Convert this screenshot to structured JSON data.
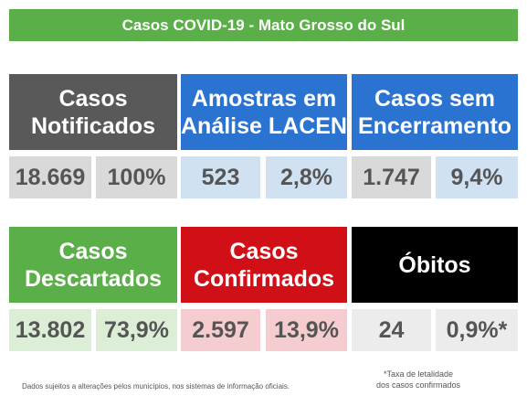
{
  "title": "Casos COVID-19 - Mato Grosso do Sul",
  "row1": {
    "notificados": {
      "line1": "Casos",
      "line2": "Notificados",
      "value": "18.669",
      "percent": "100%"
    },
    "lacen": {
      "line1": "Amostras em",
      "line2": "Análise LACEN",
      "value": "523",
      "percent": "2,8%"
    },
    "encerramento": {
      "line1": "Casos sem",
      "line2": "Encerramento",
      "value": "1.747",
      "percent": "9,4%"
    }
  },
  "row2": {
    "descartados": {
      "line1": "Casos",
      "line2": "Descartados",
      "value": "13.802",
      "percent": "73,9%"
    },
    "confirmados": {
      "line1": "Casos",
      "line2": "Confirmados",
      "value": "2.597",
      "percent": "13,9%"
    },
    "obitos": {
      "line1": "Óbitos",
      "value": "24",
      "percent": "0,9%*"
    }
  },
  "footnote": "Dados sujeitos a alterações pelos municípios, nos sistemas de informação oficiais.",
  "taxa_note": {
    "line1": "*Taxa de letalidade",
    "line2": "dos casos confirmados"
  },
  "colors": {
    "banner": "#5aaf48",
    "notificados": "#595959",
    "lacen": "#2b73d0",
    "encerramento": "#2b73d0",
    "descartados": "#5aaf48",
    "confirmados": "#d10f17",
    "obitos": "#000000"
  }
}
